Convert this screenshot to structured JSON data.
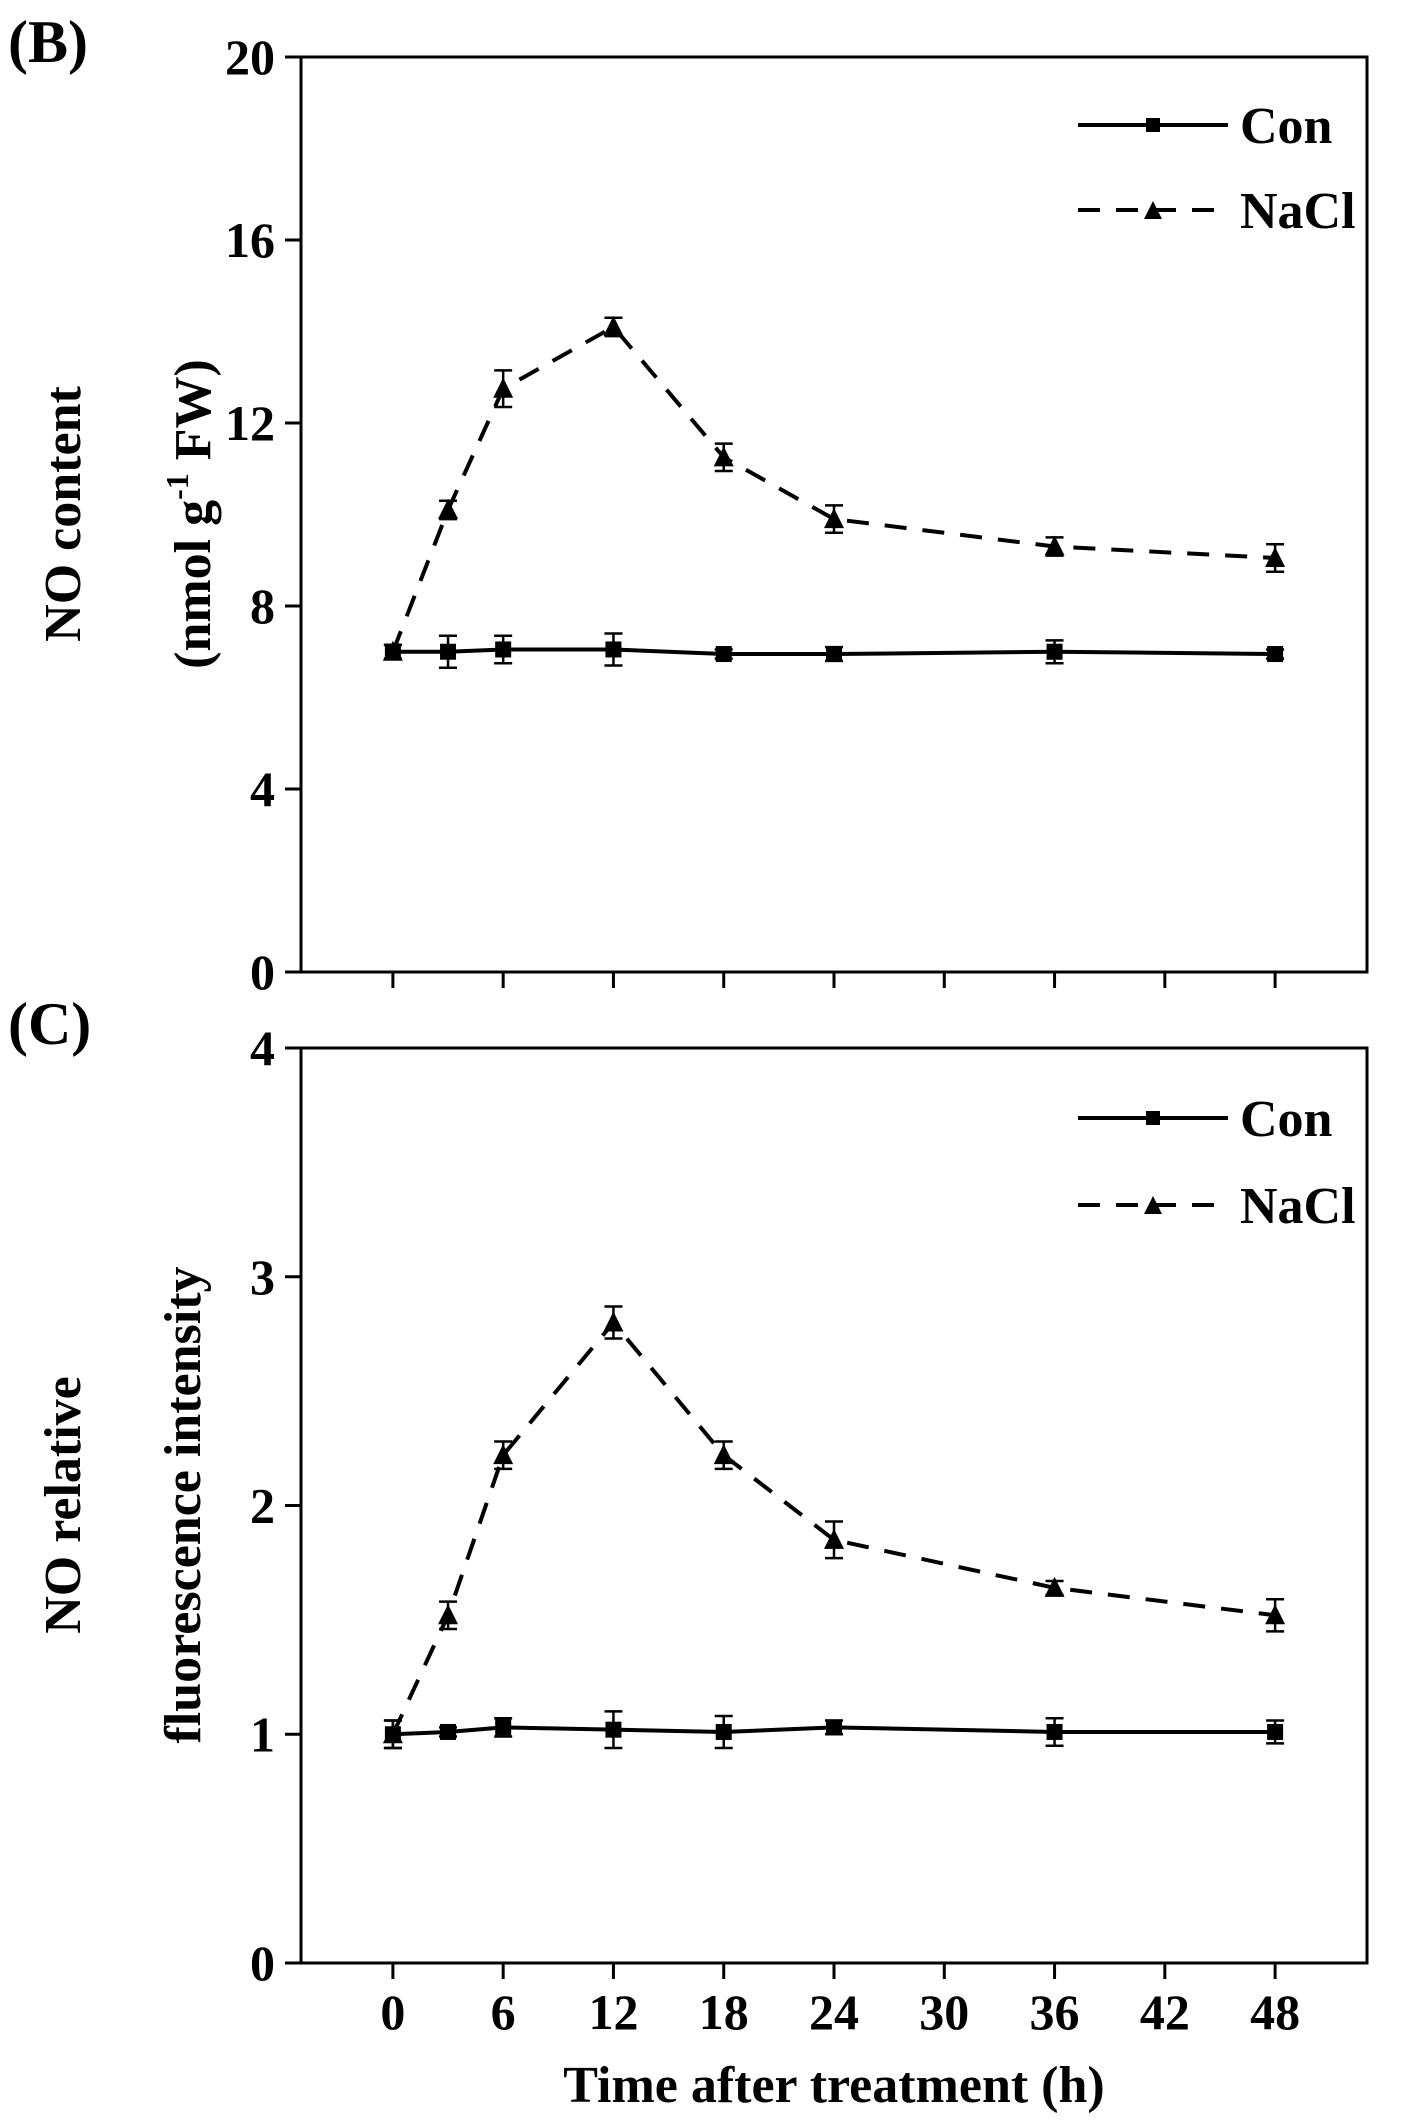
{
  "chart_data": [
    {
      "type": "line",
      "panel_label": "(B)",
      "title": "",
      "ylabel_line1": "NO content",
      "ylabel_line2_main": "(nmol g",
      "ylabel_line2_sup": "-1",
      "ylabel_line2_tail": " FW)",
      "xlabel": "",
      "xlim": [
        -5,
        53
      ],
      "ylim": [
        0,
        20
      ],
      "x_ticks": [
        0,
        6,
        12,
        18,
        24,
        30,
        36,
        42,
        48
      ],
      "y_ticks": [
        0,
        4,
        8,
        12,
        16,
        20
      ],
      "y_tick_labels": [
        "0",
        "4",
        "8",
        "12",
        "16",
        "20"
      ],
      "show_x_tick_labels": false,
      "legend_position": "top-right",
      "series": [
        {
          "name": "Con",
          "style": "solid",
          "marker": "square",
          "x": [
            0,
            3,
            6,
            12,
            18,
            24,
            36,
            48
          ],
          "values": [
            7.0,
            7.0,
            7.05,
            7.05,
            6.95,
            6.95,
            7.0,
            6.95
          ],
          "errors": [
            0.15,
            0.35,
            0.3,
            0.35,
            0.1,
            0.15,
            0.25,
            0.1
          ]
        },
        {
          "name": "NaCl",
          "style": "dashed",
          "marker": "triangle",
          "x": [
            0,
            3,
            6,
            12,
            18,
            24,
            36,
            48
          ],
          "values": [
            7.0,
            10.1,
            12.75,
            14.1,
            11.25,
            9.9,
            9.3,
            9.05
          ],
          "errors": [
            0.15,
            0.2,
            0.4,
            0.2,
            0.3,
            0.3,
            0.2,
            0.3
          ]
        }
      ]
    },
    {
      "type": "line",
      "panel_label": "(C)",
      "title": "",
      "ylabel_line1": "NO relative",
      "ylabel_line2": "fluorescence intensity",
      "xlabel": "Time after treatment (h)",
      "xlim": [
        -5,
        53
      ],
      "ylim": [
        0,
        4
      ],
      "x_ticks": [
        0,
        6,
        12,
        18,
        24,
        30,
        36,
        42,
        48
      ],
      "x_tick_labels": [
        "0",
        "6",
        "12",
        "18",
        "24",
        "30",
        "36",
        "42",
        "48"
      ],
      "y_ticks": [
        0,
        1,
        2,
        3,
        4
      ],
      "y_tick_labels": [
        "0",
        "1",
        "2",
        "3",
        "4"
      ],
      "show_x_tick_labels": true,
      "legend_position": "top-right",
      "series": [
        {
          "name": "Con",
          "style": "solid",
          "marker": "square",
          "x": [
            0,
            3,
            6,
            12,
            18,
            24,
            36,
            48
          ],
          "values": [
            1.0,
            1.01,
            1.03,
            1.02,
            1.01,
            1.03,
            1.01,
            1.01
          ],
          "errors": [
            0.06,
            0.02,
            0.04,
            0.08,
            0.07,
            0.03,
            0.06,
            0.05
          ]
        },
        {
          "name": "NaCl",
          "style": "dashed",
          "marker": "triangle",
          "x": [
            0,
            3,
            6,
            12,
            18,
            24,
            36,
            48
          ],
          "values": [
            1.0,
            1.52,
            2.22,
            2.8,
            2.22,
            1.85,
            1.64,
            1.52
          ],
          "errors": [
            0.06,
            0.06,
            0.06,
            0.07,
            0.06,
            0.08,
            0.03,
            0.07
          ]
        }
      ]
    }
  ]
}
